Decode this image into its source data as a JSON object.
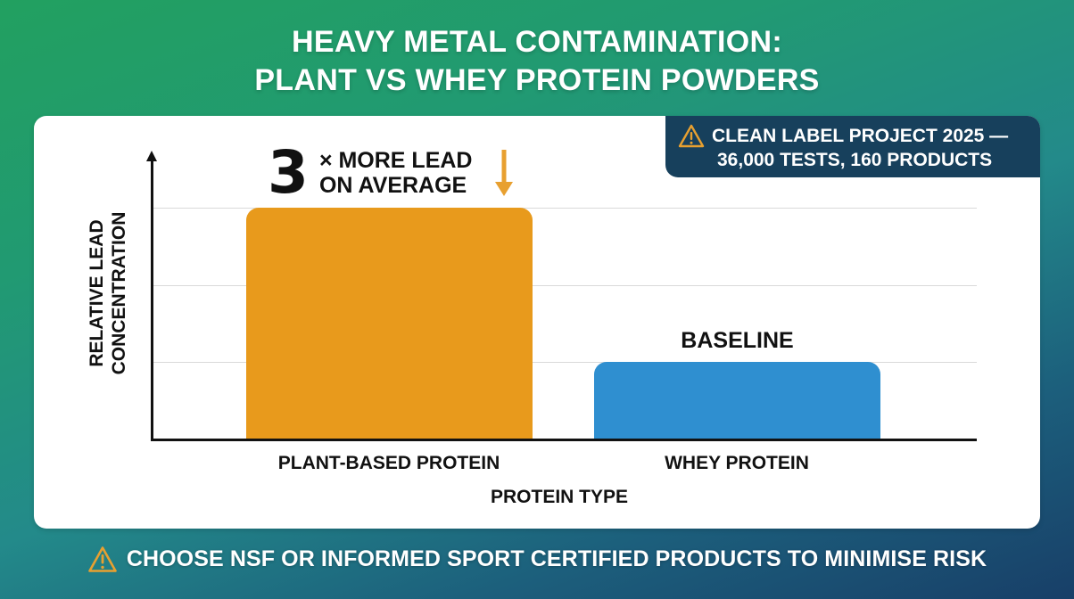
{
  "header": {
    "title_line1": "HEAVY METAL CONTAMINATION:",
    "title_line2": "PLANT VS WHEY PROTEIN POWDERS"
  },
  "badge": {
    "icon": "warning-triangle-icon",
    "line1": "CLEAN LABEL PROJECT 2025 —",
    "line2": "36,000 TESTS, 160 PRODUCTS"
  },
  "callout": {
    "big_number": "3",
    "line1": "× MORE LEAD",
    "line2": "ON AVERAGE",
    "icon": "down-arrow-icon"
  },
  "baseline_label": "BASELINE",
  "footer": {
    "icon": "warning-triangle-icon",
    "text": "CHOOSE NSF OR INFORMED SPORT CERTIFIED PRODUCTS TO MINIMISE RISK"
  },
  "colors": {
    "plant_bar": "#E89A1C",
    "whey_bar": "#2F8FD0",
    "badge_bg": "#17405C",
    "warning_icon": "#E8A030",
    "background_top": "#22A060",
    "background_bottom": "#183F68"
  },
  "chart_data": {
    "type": "bar",
    "title": "HEAVY METAL CONTAMINATION: PLANT VS WHEY PROTEIN POWDERS",
    "categories": [
      "PLANT-BASED PROTEIN",
      "WHEY PROTEIN"
    ],
    "values": [
      3,
      1
    ],
    "xlabel": "PROTEIN TYPE",
    "ylabel_line1": "RELATIVE LEAD",
    "ylabel_line2": "CONCENTRATION",
    "ylabel": "RELATIVE LEAD CONCENTRATION",
    "ylim": [
      0,
      3.6
    ],
    "grid": true,
    "gridlines_at": [
      1,
      2,
      3
    ],
    "y_tick_labels_shown": false,
    "annotations": [
      {
        "target": "PLANT-BASED PROTEIN",
        "text": "3 × MORE LEAD ON AVERAGE"
      },
      {
        "target": "WHEY PROTEIN",
        "text": "BASELINE"
      }
    ],
    "source_note": "CLEAN LABEL PROJECT 2025 — 36,000 TESTS, 160 PRODUCTS",
    "bar_colors": [
      "#E89A1C",
      "#2F8FD0"
    ],
    "legend": "none"
  }
}
